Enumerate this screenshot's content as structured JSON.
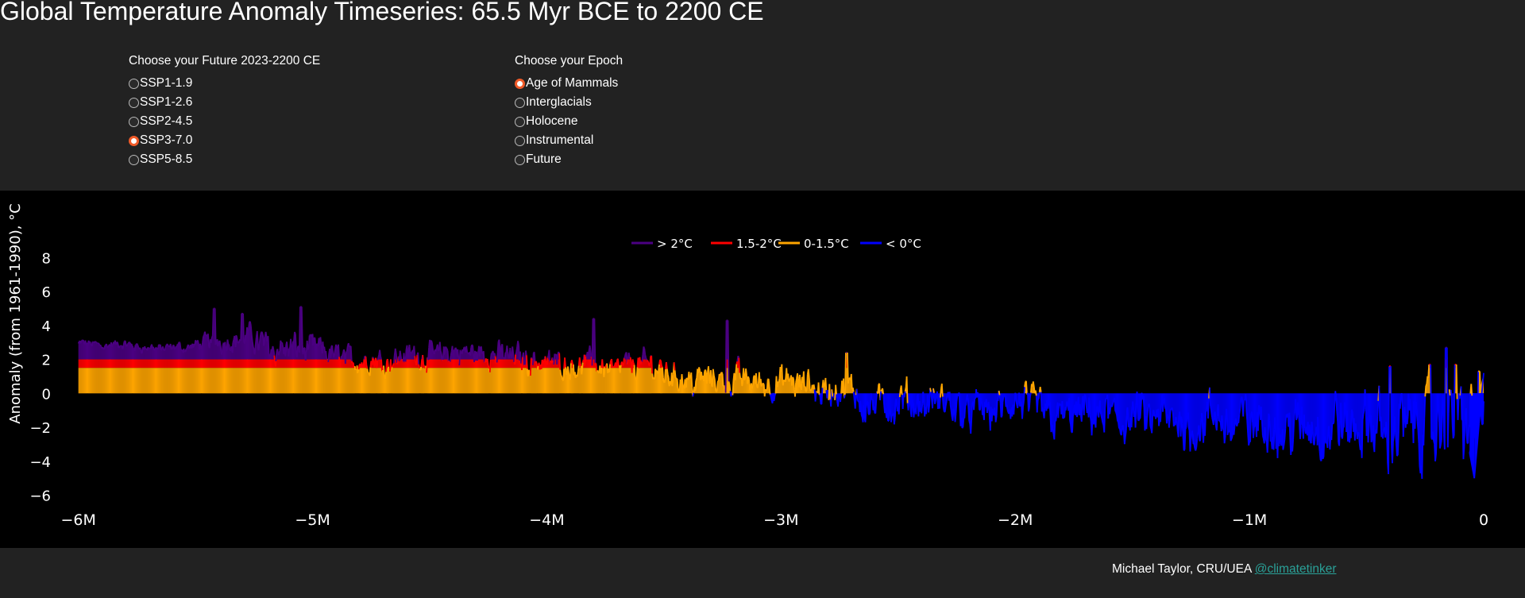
{
  "page": {
    "title": "Global Temperature Anomaly Timeseries: 65.5 Myr BCE to 2200 CE"
  },
  "future_selector": {
    "title": "Choose your Future 2023-2200 CE",
    "options": [
      "SSP1-1.9",
      "SSP1-2.6",
      "SSP2-4.5",
      "SSP3-7.0",
      "SSP5-8.5"
    ],
    "selected": "SSP3-7.0"
  },
  "epoch_selector": {
    "title": "Choose your Epoch",
    "options": [
      "Age of Mammals",
      "Interglacials",
      "Holocene",
      "Instrumental",
      "Future"
    ],
    "selected": "Age of Mammals"
  },
  "chart_data": {
    "type": "area",
    "title": "",
    "ylabel": "Anomaly (from 1961-1990), °C",
    "xlabel": "",
    "xlim": [
      -6060000,
      0
    ],
    "ylim": [
      -6.3,
      8.2
    ],
    "x_ticks": [
      -6000000,
      -5000000,
      -4000000,
      -3000000,
      -2000000,
      -1000000,
      0
    ],
    "x_tick_labels": [
      "−6M",
      "−5M",
      "−4M",
      "−3M",
      "−2M",
      "−1M",
      "0"
    ],
    "y_ticks": [
      -6,
      -4,
      -2,
      0,
      2,
      4,
      6,
      8
    ],
    "y_tick_labels": [
      "−6",
      "−4",
      "−2",
      "0",
      "2",
      "4",
      "6",
      "8"
    ],
    "grid": false,
    "legend_position": "top-center",
    "legend": [
      {
        "name": "> 2°C",
        "color": "#4b0082"
      },
      {
        "name": "1.5-2°C",
        "color": "#ff0000"
      },
      {
        "name": "0-1.5°C",
        "color": "#ffa500"
      },
      {
        "name": "< 0°C",
        "color": "#0000ff"
      }
    ],
    "series_trend": {
      "x": [
        -6000000,
        -5900000,
        -5800000,
        -5700000,
        -5600000,
        -5500000,
        -5400000,
        -5300000,
        -5200000,
        -5100000,
        -5000000,
        -4900000,
        -4800000,
        -4700000,
        -4600000,
        -4500000,
        -4400000,
        -4300000,
        -4200000,
        -4100000,
        -4000000,
        -3900000,
        -3800000,
        -3700000,
        -3600000,
        -3500000,
        -3400000,
        -3300000,
        -3200000,
        -3100000,
        -3000000,
        -2900000,
        -2800000,
        -2700000,
        -2600000,
        -2500000,
        -2400000,
        -2300000,
        -2200000,
        -2100000,
        -2000000,
        -1900000,
        -1800000,
        -1700000,
        -1600000,
        -1500000,
        -1400000,
        -1300000,
        -1200000,
        -1100000,
        -1000000,
        -900000,
        -800000,
        -700000,
        -600000,
        -500000,
        -400000,
        -300000,
        -200000,
        -100000,
        0
      ],
      "y": [
        2.9,
        2.9,
        2.8,
        2.7,
        2.6,
        2.8,
        3.2,
        3.3,
        3.0,
        2.6,
        2.5,
        2.2,
        2.0,
        2.0,
        2.3,
        2.2,
        2.4,
        2.3,
        2.3,
        2.1,
        1.9,
        1.8,
        1.7,
        1.5,
        1.7,
        1.4,
        0.9,
        0.8,
        0.9,
        0.7,
        0.6,
        0.4,
        0.2,
        0.0,
        -0.6,
        -0.9,
        -0.6,
        -0.7,
        -1.0,
        -1.1,
        -0.9,
        -1.0,
        -1.3,
        -1.5,
        -1.5,
        -1.6,
        -1.8,
        -1.8,
        -1.6,
        -1.9,
        -1.7,
        -2.0,
        -2.1,
        -2.1,
        -2.0,
        -2.2,
        -2.3,
        -1.8,
        -2.2,
        -1.6,
        -1.5
      ],
      "variability": [
        0.4,
        0.4,
        0.4,
        0.4,
        0.4,
        0.5,
        0.8,
        1.0,
        1.2,
        1.2,
        1.1,
        1.0,
        1.0,
        1.0,
        1.0,
        1.0,
        1.0,
        1.0,
        1.1,
        1.1,
        1.1,
        1.0,
        1.0,
        1.0,
        1.1,
        1.2,
        1.2,
        1.2,
        1.2,
        1.2,
        1.2,
        1.2,
        1.3,
        1.4,
        1.5,
        1.5,
        1.5,
        1.5,
        1.5,
        1.5,
        1.6,
        1.6,
        1.6,
        1.7,
        1.7,
        1.7,
        1.8,
        1.9,
        2.0,
        2.0,
        2.1,
        2.2,
        2.3,
        2.4,
        2.5,
        2.5,
        2.8,
        3.0,
        3.1,
        3.2,
        2.5
      ],
      "peaks": [
        [
          -5420000,
          5.0
        ],
        [
          -5300000,
          4.7
        ],
        [
          -5050000,
          5.1
        ],
        [
          -3800000,
          4.4
        ],
        [
          -3230000,
          4.3
        ],
        [
          -2720000,
          2.4
        ],
        [
          -160000,
          2.7
        ],
        [
          -400000,
          1.6
        ],
        [
          -230000,
          1.7
        ],
        [
          -120000,
          1.7
        ],
        [
          -20000,
          1.3
        ]
      ],
      "end": [
        [
          -60000,
          -3.5
        ],
        [
          -40000,
          -5.0
        ],
        [
          -20000,
          -1.8
        ],
        [
          0,
          1.2
        ]
      ]
    }
  },
  "footer": {
    "credit": "Michael Taylor, CRU/UEA ",
    "link_text": "@climatetinker"
  }
}
